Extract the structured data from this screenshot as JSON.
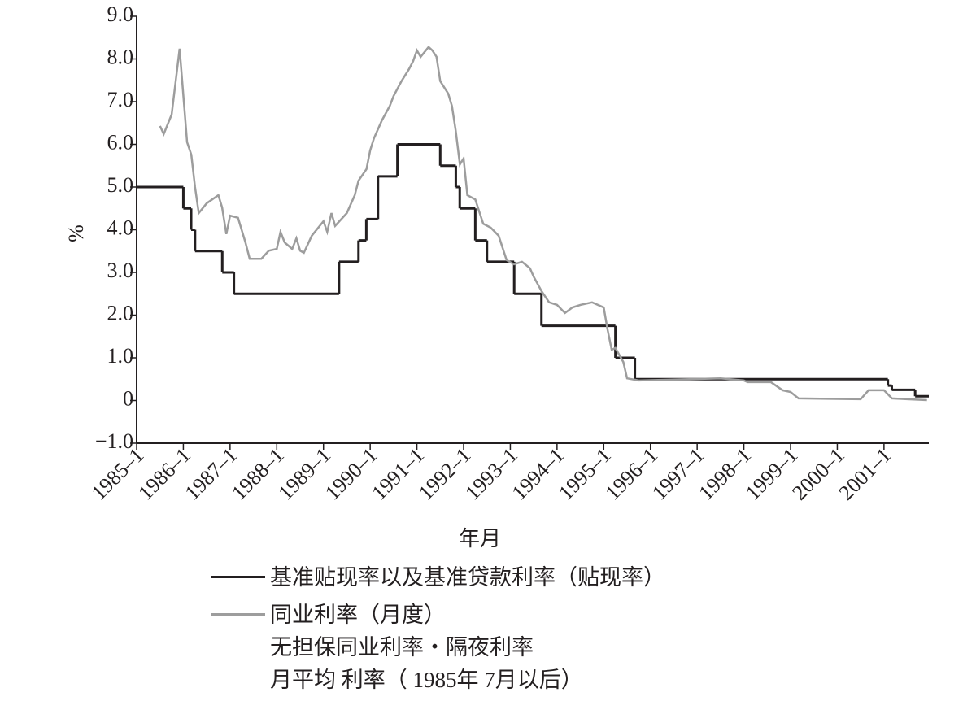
{
  "chart_data": {
    "type": "line",
    "ylabel": "%",
    "xlabel": "年月",
    "xlim": [
      1985,
      2001.96
    ],
    "ylim": [
      -1,
      9
    ],
    "xticks": [
      {
        "value": 1985,
        "label": "1985–1"
      },
      {
        "value": 1986,
        "label": "1986–1"
      },
      {
        "value": 1987,
        "label": "1987–1"
      },
      {
        "value": 1988,
        "label": "1988–1"
      },
      {
        "value": 1989,
        "label": "1989–1"
      },
      {
        "value": 1990,
        "label": "1990–1"
      },
      {
        "value": 1991,
        "label": "1991–1"
      },
      {
        "value": 1992,
        "label": "1992–1"
      },
      {
        "value": 1993,
        "label": "1993–1"
      },
      {
        "value": 1994,
        "label": "1994–1"
      },
      {
        "value": 1995,
        "label": "1995–1"
      },
      {
        "value": 1996,
        "label": "1996–1"
      },
      {
        "value": 1997,
        "label": "1997–1"
      },
      {
        "value": 1998,
        "label": "1998–1"
      },
      {
        "value": 1999,
        "label": "1999–1"
      },
      {
        "value": 2000,
        "label": "2000–1"
      },
      {
        "value": 2001,
        "label": "2001–1"
      }
    ],
    "yticks": [
      {
        "value": 9,
        "label": "9.0"
      },
      {
        "value": 8,
        "label": "8.0"
      },
      {
        "value": 7,
        "label": "7.0"
      },
      {
        "value": 6,
        "label": "6.0"
      },
      {
        "value": 5,
        "label": "5.0"
      },
      {
        "value": 4,
        "label": "4.0"
      },
      {
        "value": 3,
        "label": "3.0"
      },
      {
        "value": 2,
        "label": "2.0"
      },
      {
        "value": 1,
        "label": "1.0"
      },
      0,
      {
        "value": -1,
        "label": "−1.0"
      }
    ],
    "grid": false,
    "series": [
      {
        "name": "基准贴现率以及基准贷款利率（贴现率）",
        "color": "#231f20",
        "drawstyle": "steps-post",
        "x": [
          1985.0,
          1986.0,
          1986.167,
          1986.25,
          1986.833,
          1987.083,
          1989.333,
          1989.75,
          1989.917,
          1990.167,
          1990.583,
          1991.5,
          1991.833,
          1991.917,
          1992.25,
          1992.5,
          1993.083,
          1993.667,
          1995.25,
          1995.667,
          2001.083,
          2001.167,
          2001.667,
          2001.96
        ],
        "values": [
          5.0,
          4.5,
          4.0,
          3.5,
          3.0,
          2.5,
          3.25,
          3.75,
          4.25,
          5.25,
          6.0,
          5.5,
          5.0,
          4.5,
          3.75,
          3.25,
          2.5,
          1.75,
          1.0,
          0.5,
          0.35,
          0.25,
          0.1,
          0.1
        ]
      },
      {
        "name": "同业利率（月度）\n无担保同业利率・隔夜利率\n月平均 利率（ 1985年 7月以后）",
        "color": "#9d9d9d",
        "drawstyle": "default",
        "x": [
          1985.5,
          1985.58,
          1985.75,
          1985.92,
          1986.08,
          1986.17,
          1986.25,
          1986.33,
          1986.5,
          1986.75,
          1986.83,
          1986.92,
          1987.0,
          1987.17,
          1987.33,
          1987.42,
          1987.67,
          1987.83,
          1988.0,
          1988.08,
          1988.17,
          1988.33,
          1988.42,
          1988.5,
          1988.58,
          1988.75,
          1989.0,
          1989.08,
          1989.17,
          1989.25,
          1989.5,
          1989.67,
          1989.75,
          1989.92,
          1990.0,
          1990.08,
          1990.25,
          1990.42,
          1990.5,
          1990.67,
          1990.83,
          1990.92,
          1991.0,
          1991.08,
          1991.25,
          1991.33,
          1991.42,
          1991.5,
          1991.67,
          1991.75,
          1991.83,
          1991.92,
          1992.0,
          1992.08,
          1992.25,
          1992.42,
          1992.58,
          1992.75,
          1992.92,
          1993.08,
          1993.25,
          1993.42,
          1993.5,
          1993.67,
          1993.83,
          1994.0,
          1994.17,
          1994.33,
          1994.5,
          1994.75,
          1995.0,
          1995.08,
          1995.17,
          1995.25,
          1995.42,
          1995.5,
          1995.75,
          1996.5,
          1997.5,
          1998.0,
          1998.08,
          1998.58,
          1998.83,
          1999.0,
          1999.17,
          2000.5,
          2000.67,
          2001.0,
          2001.17,
          2001.5,
          2001.92
        ],
        "values": [
          6.43,
          6.24,
          6.7,
          8.24,
          6.05,
          5.76,
          5.0,
          4.39,
          4.62,
          4.81,
          4.52,
          3.9,
          4.33,
          4.28,
          3.7,
          3.32,
          3.32,
          3.51,
          3.55,
          3.95,
          3.7,
          3.55,
          3.8,
          3.51,
          3.46,
          3.86,
          4.2,
          3.95,
          4.39,
          4.09,
          4.39,
          4.81,
          5.15,
          5.42,
          5.86,
          6.14,
          6.56,
          6.9,
          7.13,
          7.48,
          7.76,
          7.95,
          8.2,
          8.05,
          8.28,
          8.2,
          8.05,
          7.48,
          7.19,
          6.9,
          6.33,
          5.53,
          5.67,
          4.81,
          4.71,
          4.14,
          4.05,
          3.86,
          3.29,
          3.19,
          3.25,
          3.1,
          2.9,
          2.56,
          2.3,
          2.24,
          2.05,
          2.18,
          2.24,
          2.3,
          2.18,
          1.67,
          1.19,
          1.23,
          0.9,
          0.52,
          0.47,
          0.49,
          0.52,
          0.47,
          0.43,
          0.43,
          0.24,
          0.2,
          0.05,
          0.03,
          0.24,
          0.24,
          0.05,
          0.03,
          0.01
        ]
      }
    ]
  }
}
